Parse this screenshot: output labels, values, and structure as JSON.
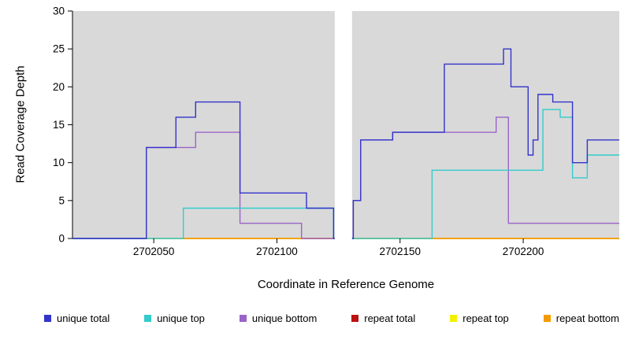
{
  "chart_data": {
    "type": "line",
    "step": true,
    "title": "",
    "xlabel": "Coordinate in Reference Genome",
    "ylabel": "Read Coverage Depth",
    "xlim": [
      2702017,
      2702239
    ],
    "ylim": [
      0,
      30
    ],
    "x_ticks": [
      2702050,
      2702100,
      2702150,
      2702200
    ],
    "y_ticks": [
      0,
      5,
      10,
      15,
      20,
      25,
      30
    ],
    "grid": false,
    "plot_bg": "#d9d9d9",
    "gap_band": {
      "x0": 2702123.5,
      "x1": 2702130.5,
      "color": "#ffffff"
    },
    "legend_position": "bottom",
    "series": [
      {
        "name": "unique total",
        "color": "#3333cc",
        "points": [
          [
            2702017,
            0
          ],
          [
            2702047,
            12
          ],
          [
            2702059,
            16
          ],
          [
            2702067,
            18
          ],
          [
            2702085,
            6
          ],
          [
            2702112,
            4
          ],
          [
            2702123,
            0
          ],
          [
            2702131,
            5
          ],
          [
            2702134,
            13
          ],
          [
            2702147,
            14
          ],
          [
            2702168,
            23
          ],
          [
            2702192,
            25
          ],
          [
            2702195,
            20
          ],
          [
            2702202,
            11
          ],
          [
            2702204,
            13
          ],
          [
            2702206,
            19
          ],
          [
            2702212,
            18
          ],
          [
            2702220,
            10
          ],
          [
            2702226,
            13
          ],
          [
            2702239,
            13
          ]
        ]
      },
      {
        "name": "unique top",
        "color": "#33cccc",
        "points": [
          [
            2702017,
            0
          ],
          [
            2702062,
            4
          ],
          [
            2702123,
            0
          ],
          [
            2702163,
            9
          ],
          [
            2702208,
            17
          ],
          [
            2702215,
            16
          ],
          [
            2702220,
            8
          ],
          [
            2702226,
            11
          ],
          [
            2702239,
            11
          ]
        ]
      },
      {
        "name": "unique bottom",
        "color": "#9a64c8",
        "points": [
          [
            2702017,
            0
          ],
          [
            2702047,
            12
          ],
          [
            2702067,
            14
          ],
          [
            2702085,
            2
          ],
          [
            2702110,
            0
          ],
          [
            2702131,
            5
          ],
          [
            2702134,
            13
          ],
          [
            2702147,
            14
          ],
          [
            2702189,
            16
          ],
          [
            2702194,
            2
          ],
          [
            2702239,
            2
          ]
        ]
      },
      {
        "name": "repeat total",
        "color": "#bb1111",
        "points": [
          [
            2702017,
            0
          ],
          [
            2702239,
            0
          ]
        ]
      },
      {
        "name": "repeat top",
        "color": "#f2f200",
        "points": [
          [
            2702017,
            0
          ],
          [
            2702239,
            0
          ]
        ]
      },
      {
        "name": "repeat bottom",
        "color": "#f59b00",
        "points": [
          [
            2702060,
            0
          ],
          [
            2702239,
            0
          ]
        ]
      }
    ]
  }
}
